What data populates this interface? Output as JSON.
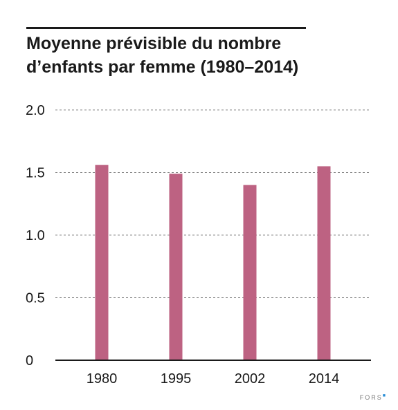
{
  "chart_data": {
    "type": "bar",
    "title_lines": [
      "Moyenne prévisible du nombre",
      "d’enfants par femme (1980–2014)"
    ],
    "categories": [
      "1980",
      "1995",
      "2002",
      "2014"
    ],
    "values": [
      1.56,
      1.49,
      1.4,
      1.55
    ],
    "yticks": [
      "0",
      "0.5",
      "1.0",
      "1.5",
      "2.0"
    ],
    "ytick_values": [
      0,
      0.5,
      1.0,
      1.5,
      2.0
    ],
    "ylim": [
      0,
      2.0
    ],
    "xlabel": "",
    "ylabel": "",
    "grid": "dashed horizontal",
    "legend": "none",
    "bar_color": "#bd6282"
  },
  "brand": {
    "text": "FORS"
  }
}
